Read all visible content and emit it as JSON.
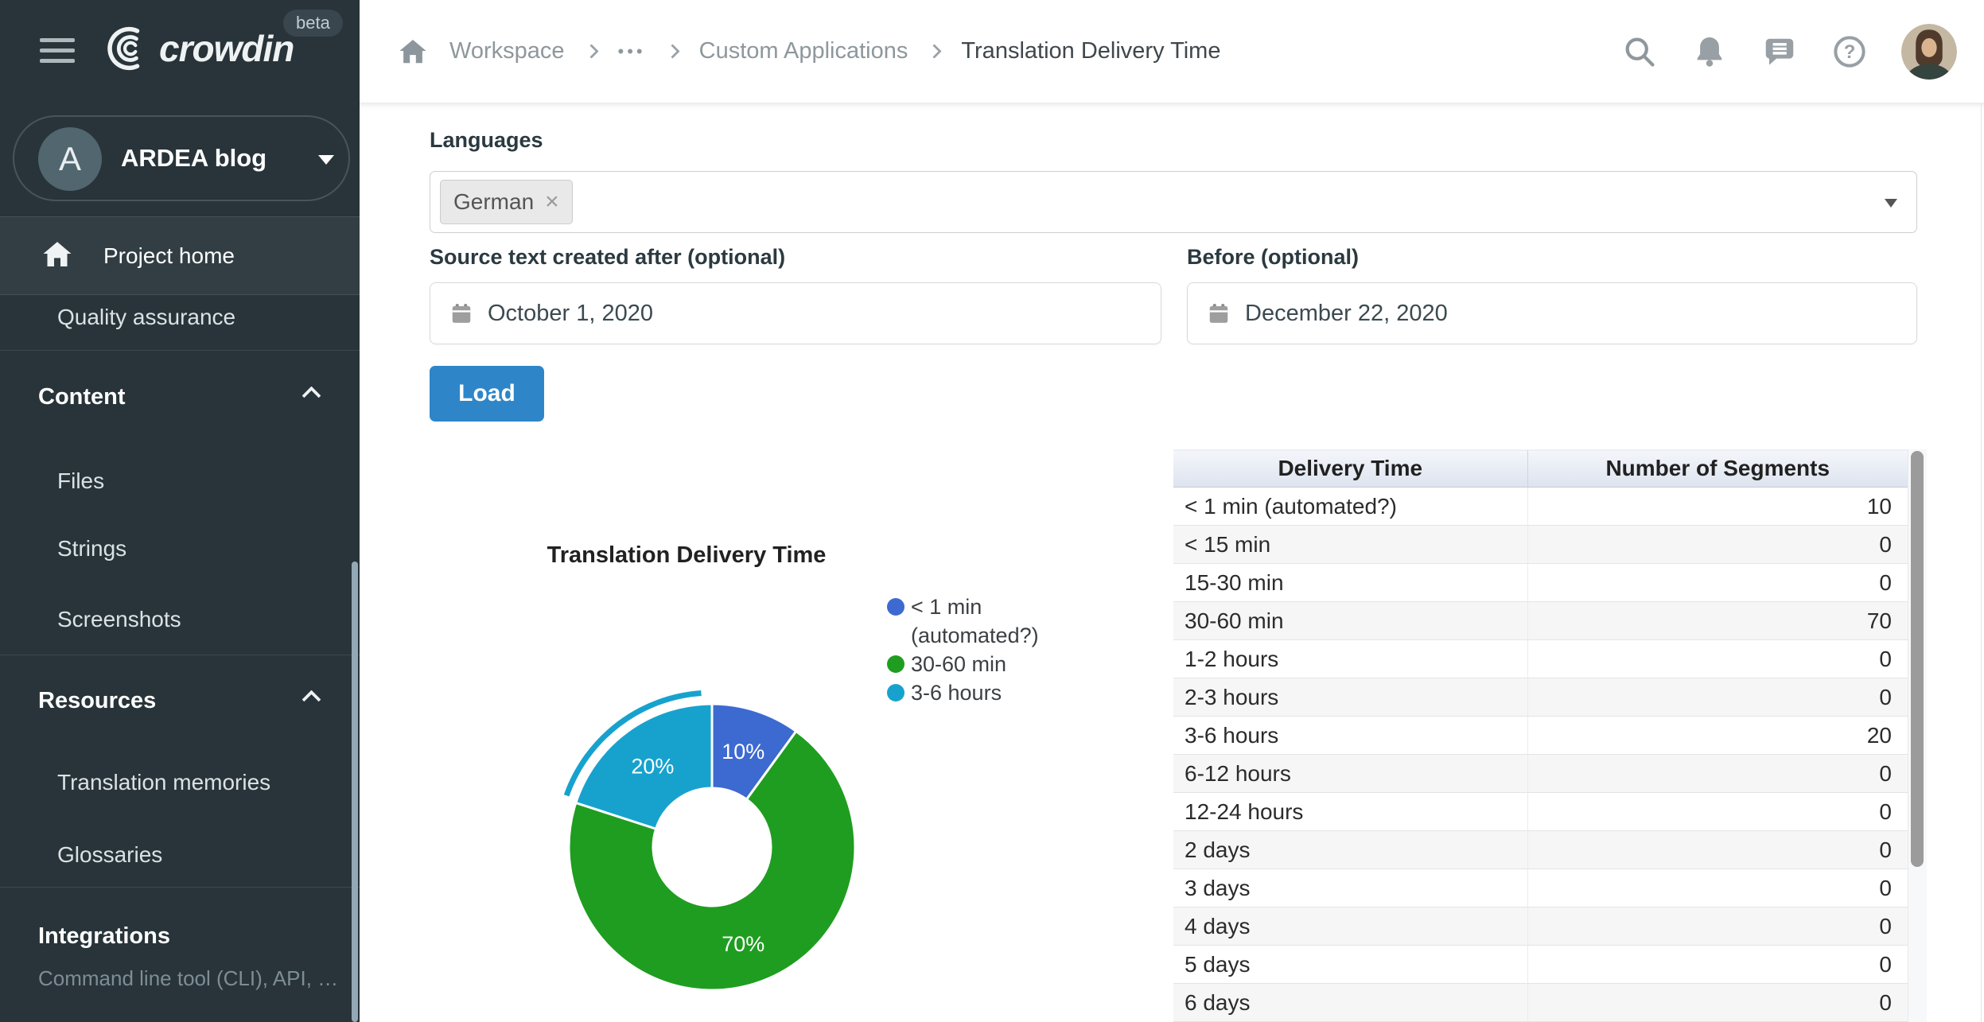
{
  "topbar": {
    "breadcrumb": {
      "workspace": "Workspace",
      "ellipsis": "•••",
      "custom_applications": "Custom Applications",
      "current": "Translation Delivery Time"
    }
  },
  "sidebar": {
    "logo_text": "crowdin",
    "beta_badge": "beta",
    "project": {
      "avatar_initial": "A",
      "name": "ARDEA blog"
    },
    "project_home": "Project home",
    "quality_assurance": "Quality assurance",
    "content_section": {
      "title": "Content",
      "items": [
        "Files",
        "Strings",
        "Screenshots"
      ]
    },
    "resources_section": {
      "title": "Resources",
      "items": [
        "Translation memories",
        "Glossaries"
      ]
    },
    "integrations_section": {
      "title": "Integrations",
      "subtitle": "Command line tool (CLI), API, …"
    }
  },
  "filters": {
    "languages_label": "Languages",
    "language_tag": "German",
    "tag_remove": "×",
    "after_label": "Source text created after (optional)",
    "after_value": "October 1, 2020",
    "before_label": "Before (optional)",
    "before_value": "December 22, 2020",
    "load_button": "Load"
  },
  "chart_data": {
    "type": "pie",
    "donut": true,
    "title": "Translation Delivery Time",
    "labels": [
      "< 1 min (automated?)",
      "30-60 min",
      "3-6 hours"
    ],
    "values": [
      10,
      70,
      20
    ],
    "slice_labels": [
      "10%",
      "70%",
      "20%"
    ],
    "colors": [
      "#3D6AD1",
      "#1F9D20",
      "#17A2CE"
    ],
    "legend_position": "right",
    "inner_radius_ratio": 0.41,
    "start_angle": 0,
    "selected_slice": 2
  },
  "table": {
    "headers": [
      "Delivery Time",
      "Number of Segments"
    ],
    "rows": [
      {
        "delivery_time": "< 1 min (automated?)",
        "segments": 10
      },
      {
        "delivery_time": "< 15 min",
        "segments": 0
      },
      {
        "delivery_time": "15-30 min",
        "segments": 0
      },
      {
        "delivery_time": "30-60 min",
        "segments": 70
      },
      {
        "delivery_time": "1-2 hours",
        "segments": 0
      },
      {
        "delivery_time": "2-3 hours",
        "segments": 0
      },
      {
        "delivery_time": "3-6 hours",
        "segments": 20
      },
      {
        "delivery_time": "6-12 hours",
        "segments": 0
      },
      {
        "delivery_time": "12-24 hours",
        "segments": 0
      },
      {
        "delivery_time": "2 days",
        "segments": 0
      },
      {
        "delivery_time": "3 days",
        "segments": 0
      },
      {
        "delivery_time": "4 days",
        "segments": 0
      },
      {
        "delivery_time": "5 days",
        "segments": 0
      },
      {
        "delivery_time": "6 days",
        "segments": 0
      }
    ]
  }
}
